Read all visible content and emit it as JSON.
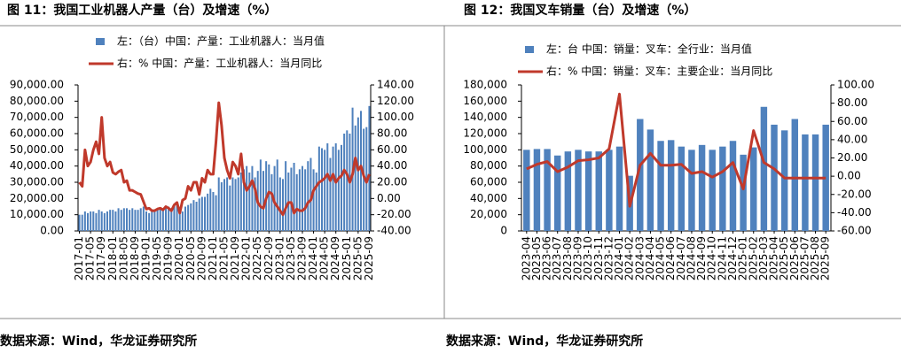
{
  "chart_data": [
    {
      "type": "bar",
      "title": "图 11：我国工业机器人产量（台）及增速（%）",
      "source": "数据来源：Wind，华龙证券研究所",
      "categories": [
        "2017-01",
        null,
        null,
        null,
        "2017-05",
        null,
        null,
        null,
        "2017-09",
        null,
        null,
        null,
        "2018-01",
        null,
        null,
        null,
        "2018-05",
        null,
        null,
        null,
        "2018-09",
        null,
        null,
        null,
        "2019-01",
        null,
        null,
        null,
        "2019-05",
        null,
        null,
        null,
        "2019-09",
        null,
        null,
        null,
        "2020-01",
        null,
        null,
        null,
        "2020-05",
        null,
        null,
        null,
        "2020-09",
        null,
        null,
        null,
        "2021-01",
        null,
        null,
        null,
        "2021-05",
        null,
        null,
        null,
        "2021-09",
        null,
        null,
        null,
        "2022-01",
        null,
        null,
        null,
        "2022-05",
        null,
        null,
        null,
        "2022-09",
        null,
        null,
        null,
        "2023-01",
        null,
        null,
        null,
        "2023-05",
        null,
        null,
        null,
        "2023-09",
        null,
        null,
        null,
        "2024-01",
        null,
        null,
        null,
        "2024-05",
        null,
        null,
        null,
        "2024-09",
        null,
        null,
        null,
        "2025-01",
        null,
        null,
        null,
        "2025-05",
        null,
        null,
        null,
        "2025-09"
      ],
      "series": [
        {
          "name": "左：（台）中国：产量：工业机器人：当月值",
          "color": "#4f81bd",
          "type": "bar",
          "values": [
            10000,
            10000,
            12000,
            11000,
            12000,
            12000,
            11000,
            13000,
            12000,
            11000,
            12000,
            13000,
            13000,
            12000,
            14000,
            13000,
            14000,
            14000,
            13000,
            14000,
            13000,
            13000,
            14000,
            15000,
            12000,
            11000,
            13000,
            12000,
            13000,
            14000,
            13000,
            14000,
            15000,
            14000,
            16000,
            17000,
            13000,
            12000,
            15000,
            16000,
            17000,
            19000,
            18000,
            20000,
            21000,
            21000,
            23000,
            26000,
            24000,
            22000,
            33000,
            30000,
            32000,
            33000,
            28000,
            33000,
            32000,
            33000,
            36000,
            38000,
            40000,
            36000,
            40000,
            33000,
            37000,
            44000,
            37000,
            43000,
            41000,
            35000,
            40000,
            44000,
            33000,
            32000,
            43000,
            36000,
            39000,
            42000,
            35000,
            38000,
            40000,
            38000,
            43000,
            45000,
            38000,
            36000,
            52000,
            51000,
            50000,
            54000,
            45000,
            52000,
            54000,
            50000,
            53000,
            60000,
            62000,
            60000,
            76000,
            65000,
            70000,
            74000,
            63000,
            64000,
            77000
          ]
        },
        {
          "name": "右：% 中国：产量：工业机器人：当月同比",
          "color": "#c0392b",
          "type": "line",
          "axis": "y2",
          "values": [
            20,
            15,
            60,
            40,
            45,
            60,
            70,
            55,
            100,
            50,
            40,
            45,
            32,
            30,
            33,
            35,
            20,
            22,
            10,
            10,
            8,
            6,
            5,
            -4,
            -13,
            -12,
            -15,
            -15,
            -13,
            -12,
            -14,
            -10,
            -12,
            -15,
            -8,
            -5,
            -18,
            -2,
            0,
            15,
            10,
            20,
            20,
            5,
            25,
            20,
            35,
            30,
            30,
            70,
            118,
            90,
            50,
            35,
            25,
            45,
            40,
            30,
            55,
            20,
            10,
            15,
            22,
            12,
            -5,
            -10,
            -12,
            0,
            8,
            6,
            -5,
            -10,
            -15,
            -20,
            -12,
            -5,
            -5,
            -18,
            -13,
            -15,
            -15,
            -12,
            -5,
            -2,
            10,
            15,
            20,
            22,
            25,
            30,
            22,
            30,
            20,
            25,
            28,
            35,
            30,
            20,
            30,
            50,
            35,
            40,
            28,
            20,
            30
          ]
        }
      ],
      "ylim": [
        0,
        90000
      ],
      "yticks": [
        {
          "value": 0,
          "label": "0.00"
        },
        {
          "value": 10000,
          "label": "10,000.00"
        },
        {
          "value": 20000,
          "label": "20,000.00"
        },
        {
          "value": 30000,
          "label": "30,000.00"
        },
        {
          "value": 40000,
          "label": "40,000.00"
        },
        {
          "value": 50000,
          "label": "50,000.00"
        },
        {
          "value": 60000,
          "label": "60,000.00"
        },
        {
          "value": 70000,
          "label": "70,000.00"
        },
        {
          "value": 80000,
          "label": "80,000.00"
        },
        {
          "value": 90000,
          "label": "90,000.00"
        }
      ],
      "y2lim": [
        -40,
        140
      ],
      "y2ticks": [
        {
          "value": -40,
          "label": "-40.00"
        },
        {
          "value": -20,
          "label": "-20.00"
        },
        {
          "value": 0,
          "label": "0.00"
        },
        {
          "value": 20,
          "label": "20.00"
        },
        {
          "value": 40,
          "label": "40.00"
        },
        {
          "value": 60,
          "label": "60.00"
        },
        {
          "value": 80,
          "label": "80.00"
        },
        {
          "value": 100,
          "label": "100.00"
        },
        {
          "value": 120,
          "label": "120.00"
        },
        {
          "value": 140,
          "label": "140.00"
        }
      ]
    },
    {
      "type": "bar",
      "title": "图 12：我国叉车销量（台）及增速（%）",
      "source": "数据来源：Wind，华龙证券研究所",
      "categories": [
        "2023-04",
        "2023-05",
        "2023-06",
        "2023-07",
        "2023-08",
        "2023-09",
        "2023-10",
        "2023-11",
        "2023-12",
        "2024-01",
        "2024-02",
        "2024-03",
        "2024-04",
        "2024-05",
        "2024-06",
        "2024-07",
        "2024-08",
        "2024-09",
        "2024-10",
        "2024-11",
        "2024-12",
        "2025-01",
        "2025-02",
        "2025-03",
        "2025-04",
        "2025-05",
        "2025-06",
        "2025-07",
        "2025-08",
        "2025-09"
      ],
      "series": [
        {
          "name": "左：台 中国：销量：叉车：全行业：当月值",
          "color": "#4f81bd",
          "type": "bar",
          "values": [
            100000,
            101000,
            101000,
            93000,
            98000,
            100000,
            98000,
            98000,
            100000,
            104000,
            68000,
            138000,
            125000,
            111000,
            112000,
            104000,
            100000,
            106000,
            100000,
            104000,
            111000,
            94000,
            103000,
            153000,
            131000,
            124000,
            138000,
            119000,
            119000,
            131000
          ]
        },
        {
          "name": "右：% 中国：销量：叉车：主要企业：当月同比",
          "color": "#c0392b",
          "type": "line",
          "axis": "y2",
          "values": [
            8,
            13,
            16,
            5,
            10,
            17,
            18,
            20,
            30,
            90,
            -33,
            12,
            25,
            12,
            12,
            13,
            3,
            5,
            -1,
            5,
            15,
            -14,
            50,
            15,
            8,
            -2,
            -2,
            -2,
            -2,
            -2
          ]
        }
      ],
      "ylim": [
        0,
        180000
      ],
      "yticks": [
        0,
        {
          "value": 20000,
          "label": "20,000"
        },
        {
          "value": 40000,
          "label": "40,000"
        },
        {
          "value": 60000,
          "label": "60,000"
        },
        {
          "value": 80000,
          "label": "80,000"
        },
        {
          "value": 100000,
          "label": "100,000"
        },
        {
          "value": 120000,
          "label": "120,000"
        },
        {
          "value": 140000,
          "label": "140,000"
        },
        {
          "value": 160000,
          "label": "160,000"
        },
        {
          "value": 180000,
          "label": "180,000"
        }
      ],
      "y2lim": [
        -60,
        100
      ],
      "y2ticks": [
        {
          "value": -60,
          "label": "-60.00"
        },
        {
          "value": -40,
          "label": "-40.00"
        },
        {
          "value": -20,
          "label": "-20.00"
        },
        {
          "value": 0,
          "label": "0.00"
        },
        {
          "value": 20,
          "label": "20.00"
        },
        {
          "value": 40,
          "label": "40.00"
        },
        {
          "value": 60,
          "label": "60.00"
        },
        {
          "value": 80,
          "label": "80.00"
        },
        {
          "value": 100,
          "label": "100.00"
        }
      ]
    }
  ]
}
